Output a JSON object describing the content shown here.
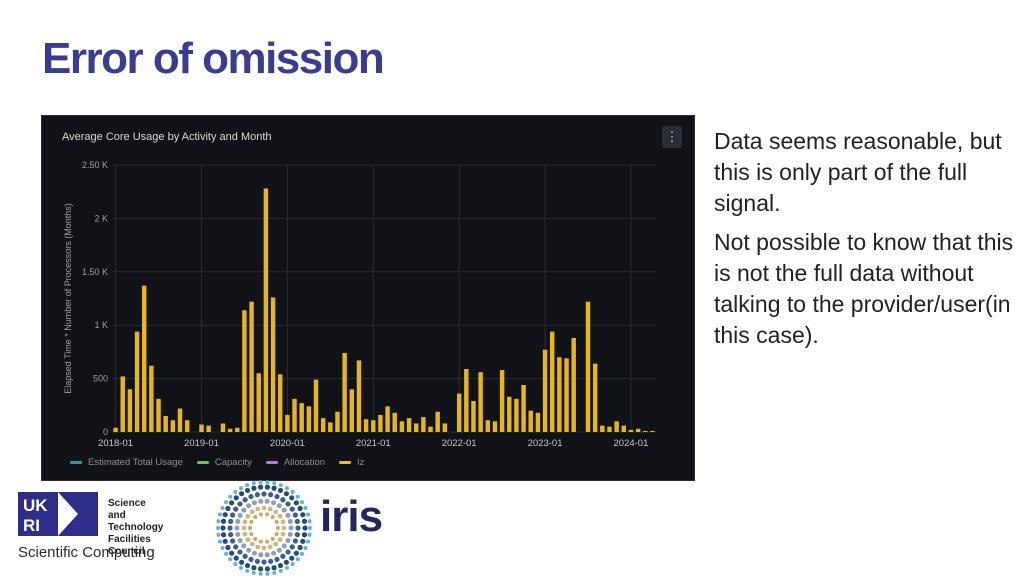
{
  "slide": {
    "title": "Error of omission",
    "notes": [
      "Data seems reasonable, but this is only part of the full signal.",
      "Not possible to know that this is not the full data without talking to the provider/user(in this case)."
    ]
  },
  "panel": {
    "menu_icon": "kebab-menu-icon",
    "menu_glyph": "⋮"
  },
  "chart_data": {
    "type": "bar",
    "title": "Average Core Usage by Activity and Month",
    "ylabel": "Elapsed Time * Number of Processors (Months)",
    "xlabel": "",
    "ylim": [
      0,
      2500
    ],
    "yticks": [
      0,
      500,
      1000,
      1500,
      2000,
      2500
    ],
    "ytick_labels": [
      "0",
      "500",
      "1 K",
      "1.50 K",
      "2 K",
      "2.50 K"
    ],
    "xtick_labels": [
      "2018-01",
      "2019-01",
      "2020-01",
      "2021-01",
      "2022-01",
      "2023-01",
      "2024-01"
    ],
    "start_label": "2018-01",
    "grid": true,
    "legend_position": "bottom-left",
    "legend": [
      {
        "name": "Estimated Total Usage",
        "color": "#2a9d8f"
      },
      {
        "name": "Capacity",
        "color": "#73bf69"
      },
      {
        "name": "Allocation",
        "color": "#b877d9"
      },
      {
        "name": "Iz",
        "color": "#f2c012"
      }
    ],
    "bar_color": "#e6b61e",
    "series": [
      {
        "name": "Iz",
        "values": [
          40,
          520,
          400,
          940,
          1370,
          620,
          310,
          150,
          110,
          220,
          110,
          0,
          70,
          60,
          0,
          80,
          30,
          40,
          1140,
          1220,
          550,
          2280,
          1260,
          540,
          160,
          310,
          270,
          240,
          490,
          130,
          90,
          190,
          740,
          400,
          670,
          120,
          110,
          160,
          240,
          180,
          100,
          130,
          80,
          140,
          50,
          190,
          80,
          0,
          360,
          590,
          290,
          560,
          110,
          100,
          580,
          330,
          310,
          440,
          200,
          180,
          770,
          940,
          700,
          690,
          880,
          0,
          1220,
          640,
          60,
          50,
          100,
          60,
          20,
          30,
          10,
          10
        ]
      }
    ]
  },
  "logos": {
    "stfc_lines": [
      "Science and",
      "Technology",
      "Facilities Council"
    ],
    "scientific_computing": "Scientific Computing",
    "iris": "iris",
    "ukri_mark": "UK RI"
  }
}
